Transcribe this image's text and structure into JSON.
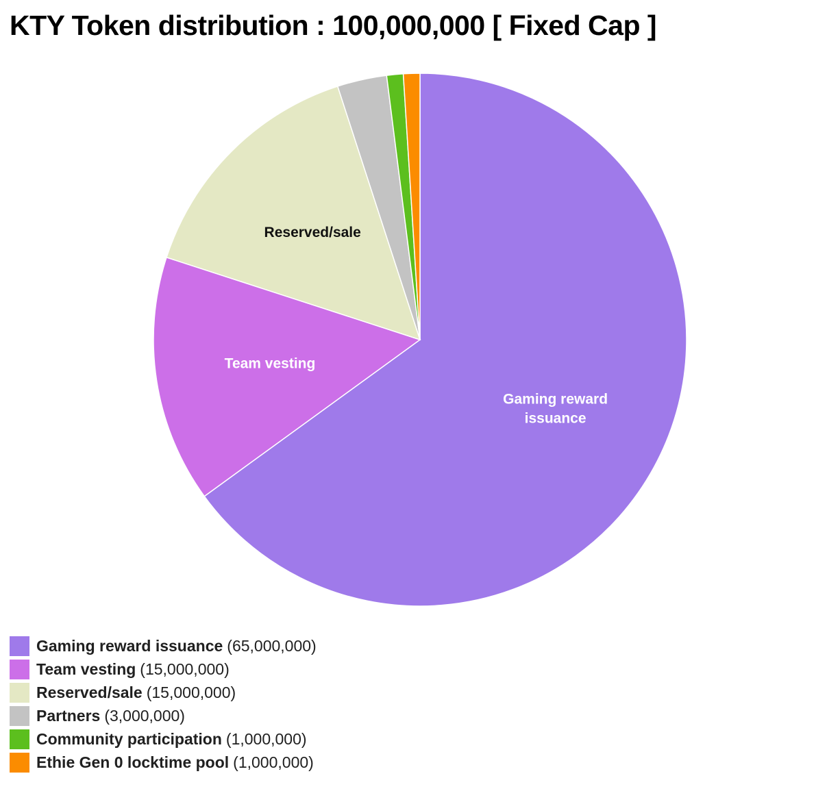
{
  "chart_data": {
    "type": "pie",
    "title": "KTY Token distribution : 100,000,000 [ Fixed Cap ]",
    "legend_position": "bottom-left",
    "slices": [
      {
        "name": "Gaming reward issuance",
        "value": 65000000,
        "value_text": "(65,000,000)",
        "color": "#9f7aea",
        "slice_label": [
          "Gaming reward",
          "issuance"
        ],
        "label_color": "#ffffff"
      },
      {
        "name": "Team vesting",
        "value": 15000000,
        "value_text": "(15,000,000)",
        "color": "#cc6fe8",
        "slice_label": [
          "Team vesting"
        ],
        "label_color": "#ffffff"
      },
      {
        "name": "Reserved/sale",
        "value": 15000000,
        "value_text": "(15,000,000)",
        "color": "#e4e8c4",
        "slice_label": [
          "Reserved/sale"
        ],
        "label_color": "#111111"
      },
      {
        "name": "Partners",
        "value": 3000000,
        "value_text": "(3,000,000)",
        "color": "#c3c3c3",
        "slice_label": [],
        "label_color": "#111111"
      },
      {
        "name": "Community participation",
        "value": 1000000,
        "value_text": "(1,000,000)",
        "color": "#5cbf1e",
        "slice_label": [],
        "label_color": "#111111"
      },
      {
        "name": "Ethie Gen 0 locktime pool",
        "value": 1000000,
        "value_text": "(1,000,000)",
        "color": "#fb8c00",
        "slice_label": [],
        "label_color": "#111111"
      }
    ]
  }
}
